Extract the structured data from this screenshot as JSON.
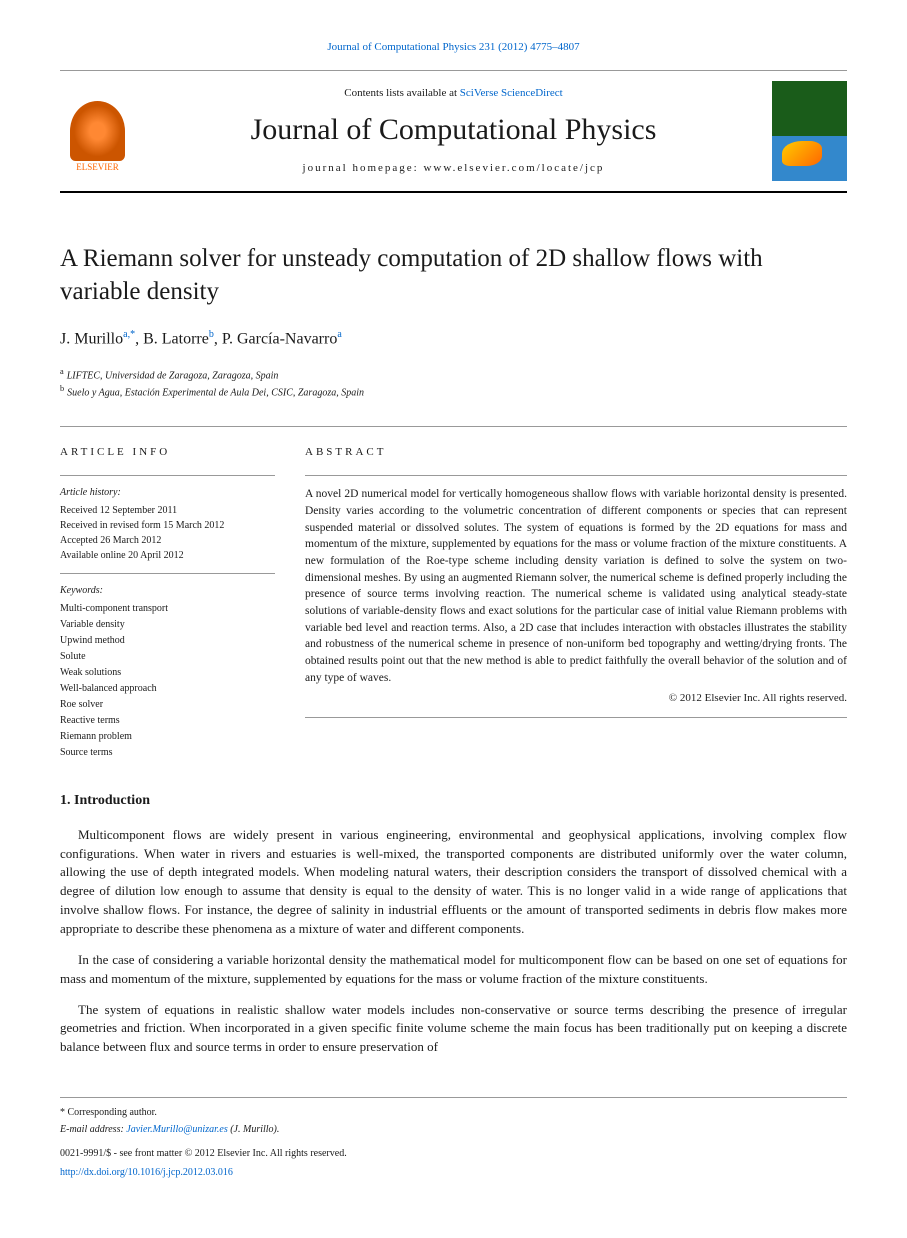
{
  "header": {
    "citation": "Journal of Computational Physics 231 (2012) 4775–4807",
    "contents_prefix": "Contents lists available at",
    "contents_link": "SciVerse ScienceDirect",
    "journal_name": "Journal of Computational Physics",
    "homepage_prefix": "journal homepage:",
    "homepage_url": "www.elsevier.com/locate/jcp",
    "publisher": "ELSEVIER"
  },
  "article": {
    "title": "A Riemann solver for unsteady computation of 2D shallow flows with variable density",
    "authors_html": "J. Murillo",
    "author1": "J. Murillo",
    "author1_aff": "a,",
    "author1_corr": "*",
    "author2": ", B. Latorre",
    "author2_aff": "b",
    "author3": ", P. García-Navarro",
    "author3_aff": "a",
    "affiliations": [
      {
        "sup": "a",
        "text": "LIFTEC, Universidad de Zaragoza, Zaragoza, Spain"
      },
      {
        "sup": "b",
        "text": "Suelo y Agua, Estación Experimental de Aula Dei, CSIC, Zaragoza, Spain"
      }
    ]
  },
  "info": {
    "heading": "ARTICLE INFO",
    "history_label": "Article history:",
    "history": [
      "Received 12 September 2011",
      "Received in revised form 15 March 2012",
      "Accepted 26 March 2012",
      "Available online 20 April 2012"
    ],
    "keywords_label": "Keywords:",
    "keywords": [
      "Multi-component transport",
      "Variable density",
      "Upwind method",
      "Solute",
      "Weak solutions",
      "Well-balanced approach",
      "Roe solver",
      "Reactive terms",
      "Riemann problem",
      "Source terms"
    ]
  },
  "abstract": {
    "heading": "ABSTRACT",
    "text": "A novel 2D numerical model for vertically homogeneous shallow flows with variable horizontal density is presented. Density varies according to the volumetric concentration of different components or species that can represent suspended material or dissolved solutes. The system of equations is formed by the 2D equations for mass and momentum of the mixture, supplemented by equations for the mass or volume fraction of the mixture constituents. A new formulation of the Roe-type scheme including density variation is defined to solve the system on two-dimensional meshes. By using an augmented Riemann solver, the numerical scheme is defined properly including the presence of source terms involving reaction. The numerical scheme is validated using analytical steady-state solutions of variable-density flows and exact solutions for the particular case of initial value Riemann problems with variable bed level and reaction terms. Also, a 2D case that includes interaction with obstacles illustrates the stability and robustness of the numerical scheme in presence of non-uniform bed topography and wetting/drying fronts. The obtained results point out that the new method is able to predict faithfully the overall behavior of the solution and of any type of waves.",
    "copyright": "© 2012 Elsevier Inc. All rights reserved."
  },
  "sections": {
    "intro_title": "1. Introduction",
    "intro_paras": [
      "Multicomponent flows are widely present in various engineering, environmental and geophysical applications, involving complex flow configurations. When water in rivers and estuaries is well-mixed, the transported components are distributed uniformly over the water column, allowing the use of depth integrated models. When modeling natural waters, their description considers the transport of dissolved chemical with a degree of dilution low enough to assume that density is equal to the density of water. This is no longer valid in a wide range of applications that involve shallow flows. For instance, the degree of salinity in industrial effluents or the amount of transported sediments in debris flow makes more appropriate to describe these phenomena as a mixture of water and different components.",
      "In the case of considering a variable horizontal density the mathematical model for multicomponent flow can be based on one set of equations for mass and momentum of the mixture, supplemented by equations for the mass or volume fraction of the mixture constituents.",
      "The system of equations in realistic shallow water models includes non-conservative or source terms describing the presence of irregular geometries and friction. When incorporated in a given specific finite volume scheme the main focus has been traditionally put on keeping a discrete balance between flux and source terms in order to ensure preservation of"
    ]
  },
  "footer": {
    "corresp_mark": "*",
    "corresp_text": "Corresponding author.",
    "email_label": "E-mail address:",
    "email": "Javier.Murillo@unizar.es",
    "email_author": "(J. Murillo).",
    "issn_line": "0021-9991/$ - see front matter © 2012 Elsevier Inc. All rights reserved.",
    "doi": "http://dx.doi.org/10.1016/j.jcp.2012.03.016"
  },
  "colors": {
    "link": "#0066cc",
    "elsevier_orange": "#ff6600",
    "rule": "#999999"
  }
}
